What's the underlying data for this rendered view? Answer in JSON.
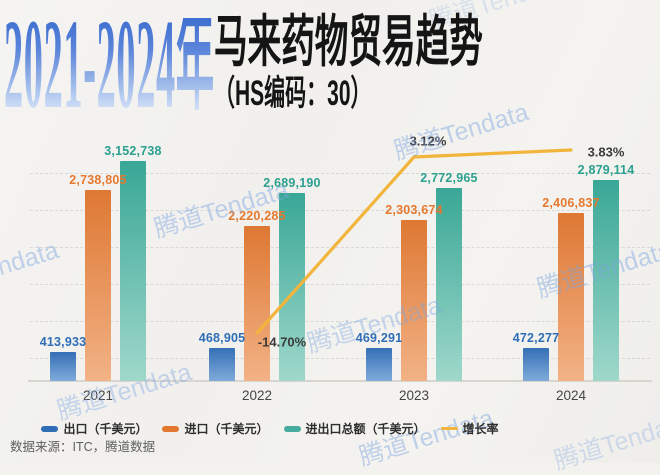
{
  "header": {
    "year_range": "2021-2024年",
    "title": "马来药物贸易趋势",
    "subtitle": "（HS编码：30）"
  },
  "watermark_text": "腾道Tendata",
  "chart_data": {
    "type": "bar+line",
    "categories": [
      "2021",
      "2022",
      "2023",
      "2024"
    ],
    "series": [
      {
        "name": "出口（千美元）",
        "type": "bar",
        "values": [
          413933,
          468905,
          469291,
          472277
        ],
        "labels": [
          "413,933",
          "468,905",
          "469,291",
          "472,277"
        ],
        "color_top": "#356fb5",
        "color_bottom": "#7fabdb",
        "label_color": "#2f6eb6"
      },
      {
        "name": "进口（千美元）",
        "type": "bar",
        "values": [
          2738805,
          2220285,
          2303674,
          2406837
        ],
        "labels": [
          "2,738,805",
          "2,220,285",
          "2,303,674",
          "2,406,837"
        ],
        "color_top": "#de7833",
        "color_bottom": "#f2b286",
        "label_color": "#e5792f"
      },
      {
        "name": "进出口总额（千美元）",
        "type": "bar",
        "values": [
          3152738,
          2689190,
          2772965,
          2879114
        ],
        "labels": [
          "3,152,738",
          "2,689,190",
          "2,772,965",
          "2,879,114"
        ],
        "color_top": "#39a796",
        "color_bottom": "#9fd8cb",
        "label_color": "#2ba08f"
      },
      {
        "name": "增长率",
        "type": "line",
        "values": [
          null,
          -14.7,
          3.12,
          3.83
        ],
        "labels": [
          "",
          "-14.70%",
          "3.12%",
          "3.83%"
        ],
        "color": "#f2b43a",
        "label_color": "#3b3b3b"
      }
    ],
    "ylim": [
      0,
      3600000
    ],
    "grid": "dashed-horizontal",
    "legend_position": "bottom"
  },
  "legend": [
    {
      "label": "出口（千美元）",
      "color": "#2e6cb5",
      "shape": "rect"
    },
    {
      "label": "进口（千美元）",
      "color": "#e2772f",
      "shape": "rect"
    },
    {
      "label": "进出口总额（千美元）",
      "color": "#45ab9c",
      "shape": "rect"
    },
    {
      "label": "增长率",
      "color": "#f2b43a",
      "shape": "line"
    }
  ],
  "footer": {
    "source": "数据来源：ITC，腾道数据"
  }
}
